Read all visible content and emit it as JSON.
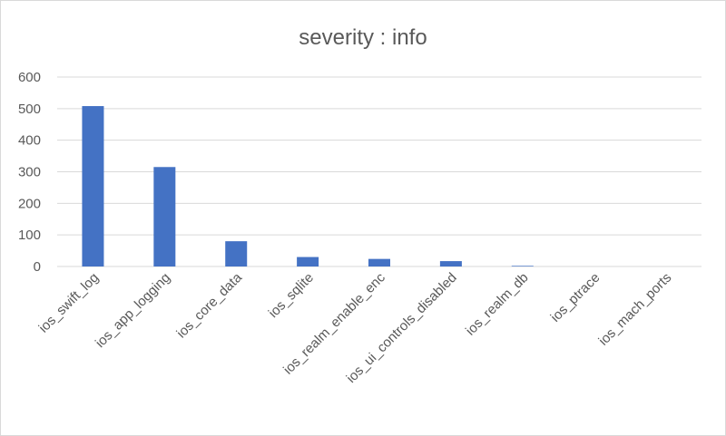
{
  "chart_data": {
    "type": "bar",
    "title": "severity : info",
    "categories": [
      "ios_swift_log",
      "ios_app_logging",
      "ios_core_data",
      "ios_sqlite",
      "ios_realm_enable_enc",
      "ios_ui_controls_disabled",
      "ios_realm_db",
      "ios_ptrace",
      "ios_mach_ports"
    ],
    "series": [
      {
        "values": [
          508,
          315,
          80,
          30,
          24,
          17,
          2,
          0,
          0
        ],
        "color": "#4472c4"
      }
    ],
    "ylim": [
      0,
      600
    ],
    "yticks": [
      0,
      100,
      200,
      300,
      400,
      500,
      600
    ],
    "grid": true,
    "legend": "none"
  }
}
